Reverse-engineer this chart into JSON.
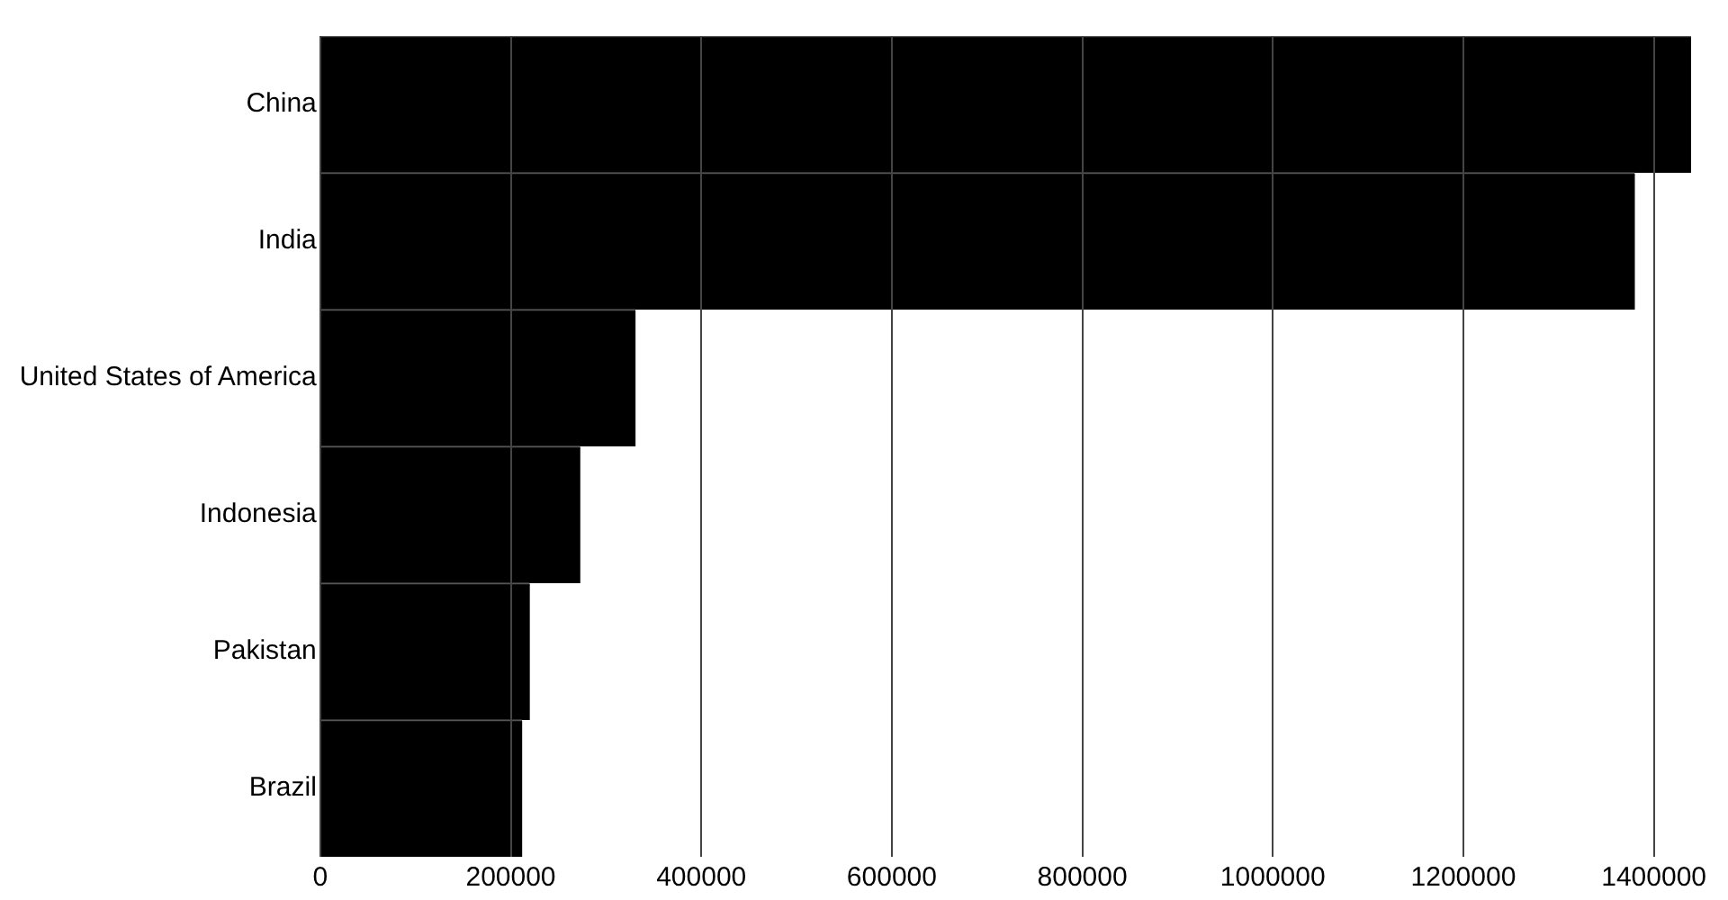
{
  "chart_data": {
    "type": "bar",
    "orientation": "horizontal",
    "categories": [
      "China",
      "India",
      "United States of America",
      "Indonesia",
      "Pakistan",
      "Brazil"
    ],
    "values": [
      1439000,
      1380000,
      331000,
      273000,
      220000,
      212000
    ],
    "color": "#000000",
    "xlim": [
      0,
      1440000
    ],
    "xticks": [
      0,
      200000,
      400000,
      600000,
      800000,
      1000000,
      1200000,
      1400000
    ],
    "grid": "x",
    "legend": false
  }
}
